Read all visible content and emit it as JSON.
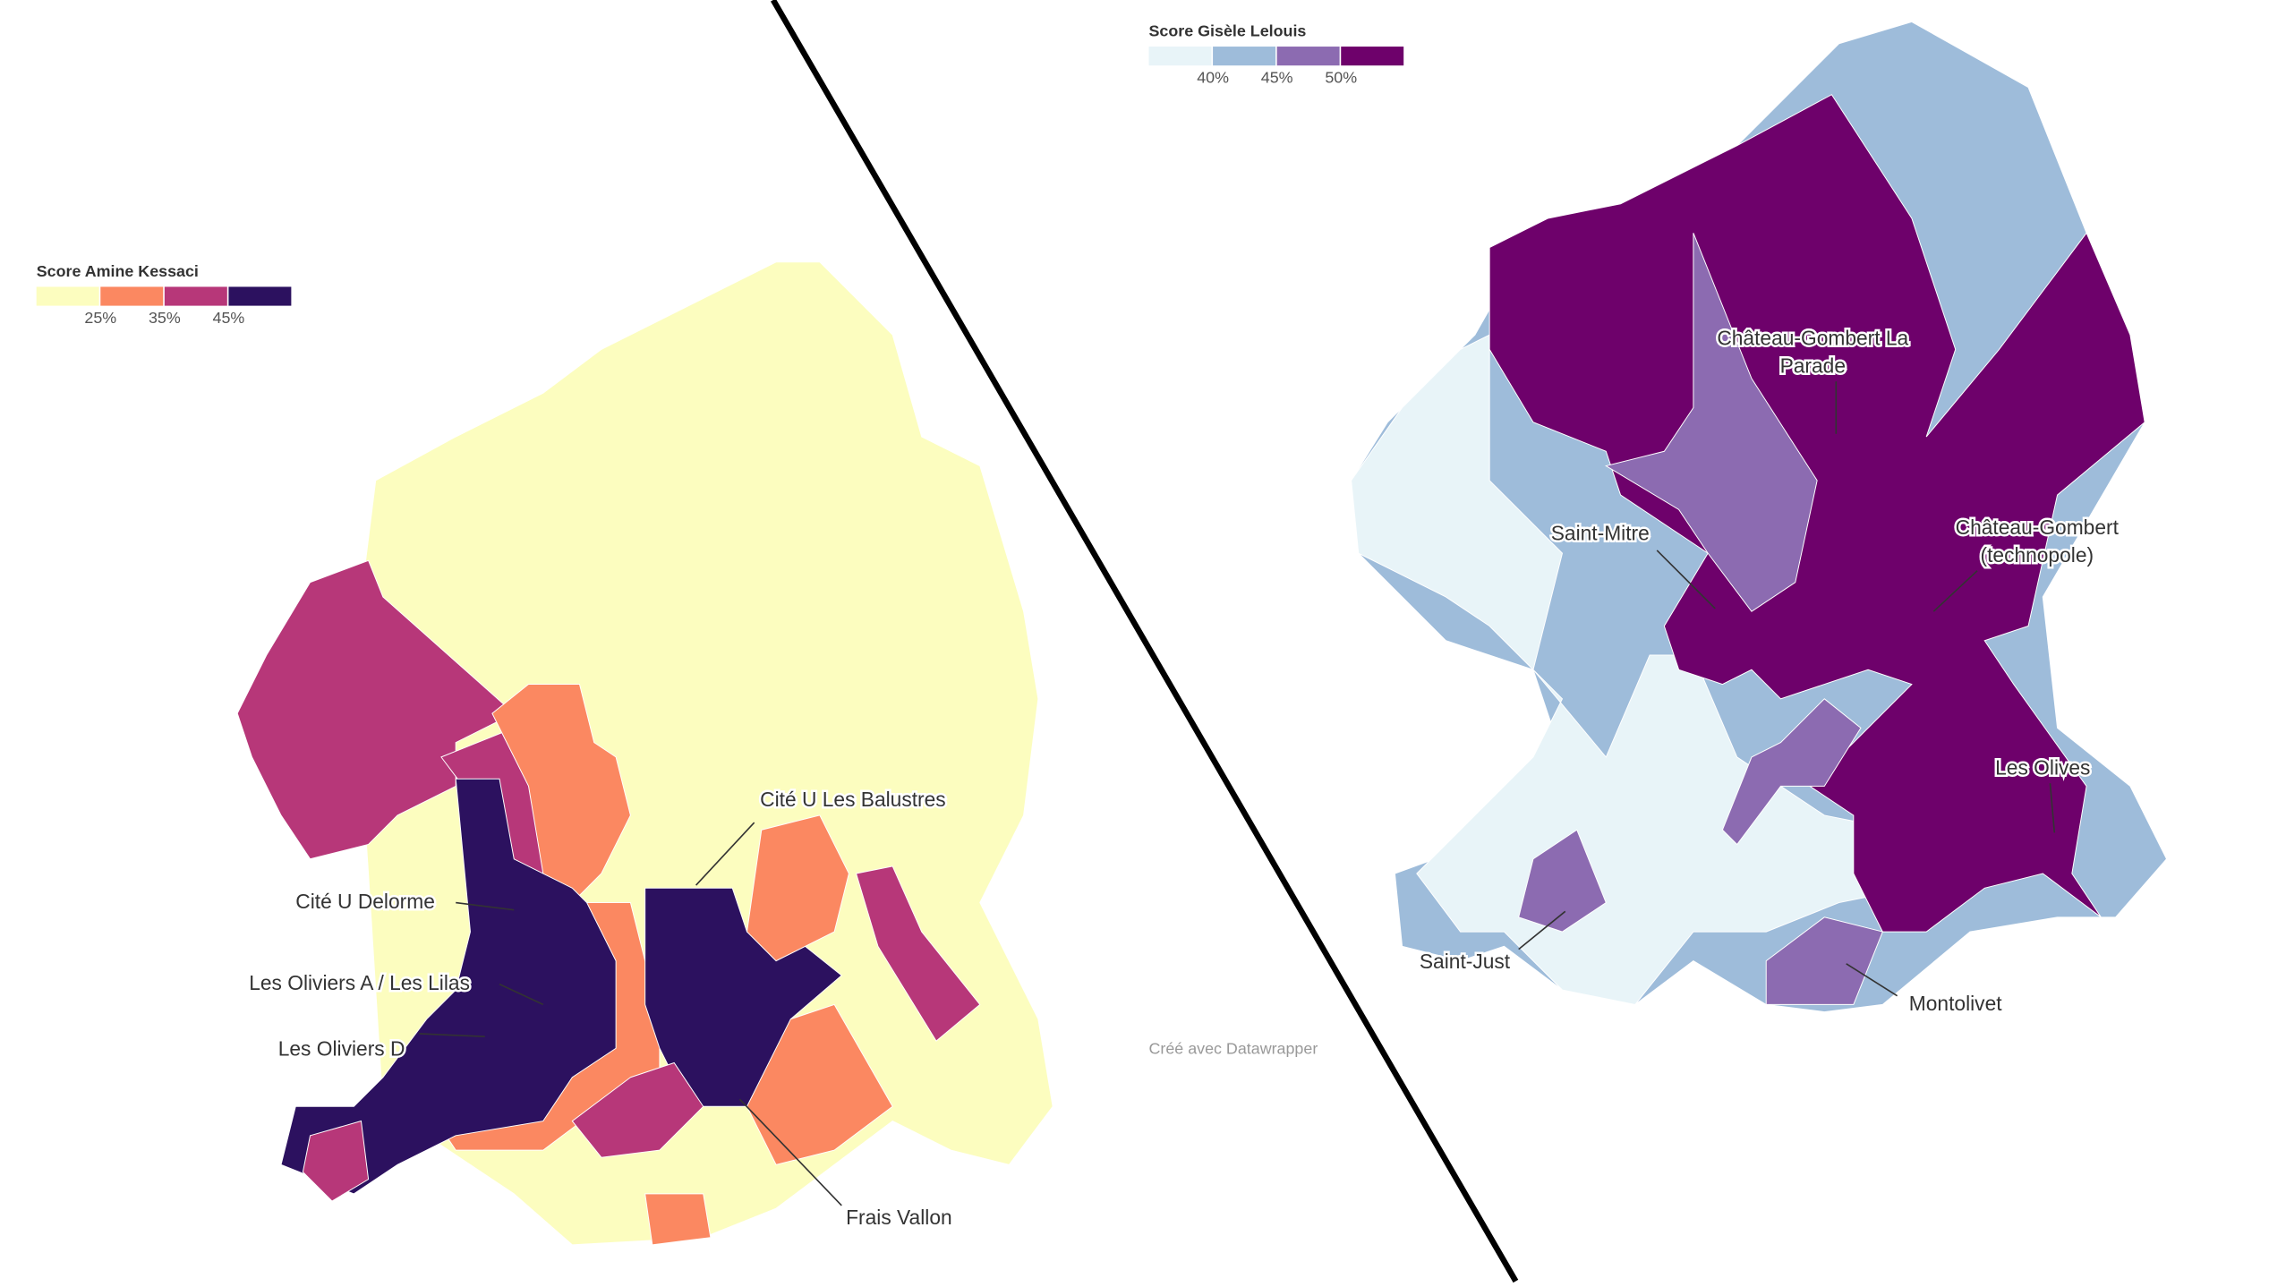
{
  "maps": [
    {
      "legend": {
        "title": "Score Amine Kessaci",
        "labels": [
          "25%",
          "35%",
          "45%"
        ],
        "colors": [
          "#fcfdbf",
          "#fb8861",
          "#b73779",
          "#2c115f"
        ]
      },
      "labels": [
        "Cité U Les Balustres",
        "Cité U Delorme",
        "Les Oliviers A / Les Lilas",
        "Les Oliviers D",
        "Frais Vallon"
      ]
    },
    {
      "legend": {
        "title": "Score Gisèle Lelouis",
        "labels": [
          "40%",
          "45%",
          "50%"
        ],
        "colors": [
          "#e8f4f8",
          "#9ebcda",
          "#8c6bb1",
          "#6e016b"
        ]
      },
      "labels": [
        "Château-Gombert La Parade",
        "Saint-Mitre",
        "Château-Gombert (technopole)",
        "Les Olives",
        "Saint-Just",
        "Montolivet"
      ],
      "credit": "Créé avec Datawrapper"
    }
  ]
}
